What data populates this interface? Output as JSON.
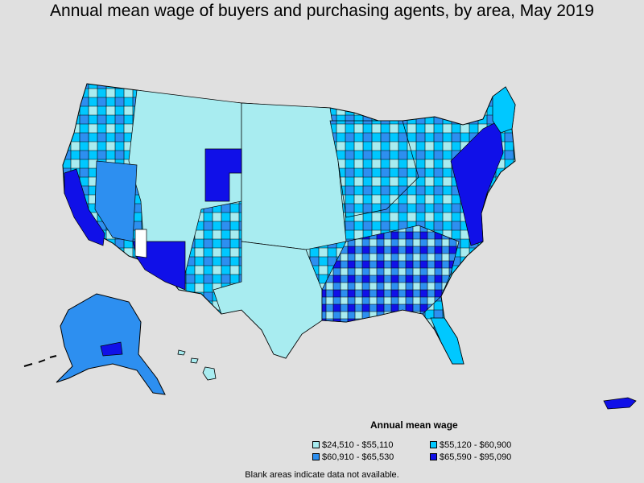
{
  "title": "Annual mean wage of buyers and purchasing agents, by area, May 2019",
  "legend": {
    "title": "Annual mean wage",
    "items": [
      {
        "label": "$24,510 - $55,110",
        "color": "#a8ecf0"
      },
      {
        "label": "$55,120 - $60,900",
        "color": "#00c8ff"
      },
      {
        "label": "$60,910 - $65,530",
        "color": "#2d8ff0"
      },
      {
        "label": "$65,590 - $95,090",
        "color": "#1010e8"
      }
    ]
  },
  "footnote": "Blank areas indicate data not available.",
  "colors": {
    "background": "#e0e0e0",
    "border": "#000000",
    "no_data": "#ffffff"
  }
}
